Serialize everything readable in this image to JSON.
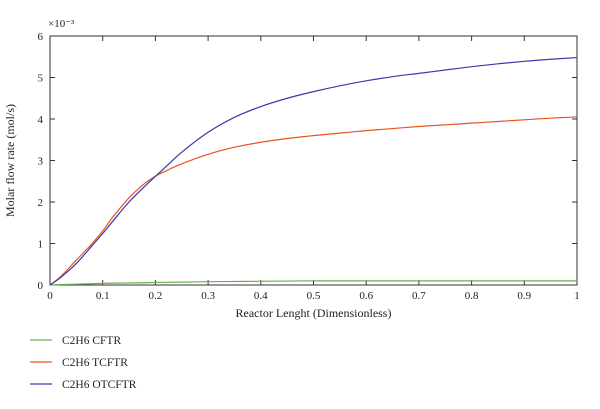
{
  "chart_data": {
    "type": "line",
    "title": "",
    "xlabel": "Reactor Lenght (Dimensionless)",
    "ylabel": "Molar flow rate (mol/s)",
    "y_multiplier_label": "×10⁻³",
    "xlim": [
      0,
      1
    ],
    "ylim": [
      0,
      6
    ],
    "x_ticks": [
      0,
      0.1,
      0.2,
      0.3,
      0.4,
      0.5,
      0.6,
      0.7,
      0.8,
      0.9,
      1
    ],
    "x_tick_labels": [
      "0",
      "0.1",
      "0.2",
      "0.3",
      "0.4",
      "0.5",
      "0.6",
      "0.7",
      "0.8",
      "0.9",
      "1"
    ],
    "y_ticks": [
      0,
      1,
      2,
      3,
      4,
      5,
      6
    ],
    "y_tick_labels": [
      "0",
      "1",
      "2",
      "3",
      "4",
      "5",
      "6"
    ],
    "grid": false,
    "legend_position": "bottom-left, below plot",
    "x": [
      0,
      0.02,
      0.05,
      0.08,
      0.1,
      0.12,
      0.15,
      0.18,
      0.2,
      0.22,
      0.25,
      0.3,
      0.35,
      0.4,
      0.45,
      0.5,
      0.55,
      0.6,
      0.65,
      0.7,
      0.75,
      0.8,
      0.85,
      0.9,
      0.95,
      1.0
    ],
    "series": [
      {
        "name": "C2H6 CFTR",
        "color": "#6ab04c",
        "values": [
          0,
          0.01,
          0.02,
          0.03,
          0.04,
          0.045,
          0.05,
          0.055,
          0.06,
          0.065,
          0.07,
          0.08,
          0.085,
          0.09,
          0.095,
          0.1,
          0.1,
          0.1,
          0.1,
          0.1,
          0.1,
          0.1,
          0.1,
          0.1,
          0.1,
          0.1
        ]
      },
      {
        "name": "C2H6 TCFTR",
        "color": "#e8541e",
        "values": [
          0,
          0.2,
          0.6,
          1.0,
          1.3,
          1.65,
          2.1,
          2.45,
          2.62,
          2.75,
          2.92,
          3.15,
          3.32,
          3.44,
          3.53,
          3.6,
          3.66,
          3.72,
          3.77,
          3.82,
          3.86,
          3.9,
          3.94,
          3.98,
          4.02,
          4.05
        ]
      },
      {
        "name": "C2H6 OTCFTR",
        "color": "#3a3aa8",
        "values": [
          0,
          0.18,
          0.52,
          0.95,
          1.24,
          1.55,
          2.0,
          2.38,
          2.62,
          2.85,
          3.2,
          3.68,
          4.04,
          4.3,
          4.5,
          4.66,
          4.8,
          4.92,
          5.02,
          5.1,
          5.18,
          5.26,
          5.33,
          5.39,
          5.44,
          5.48
        ]
      }
    ]
  }
}
